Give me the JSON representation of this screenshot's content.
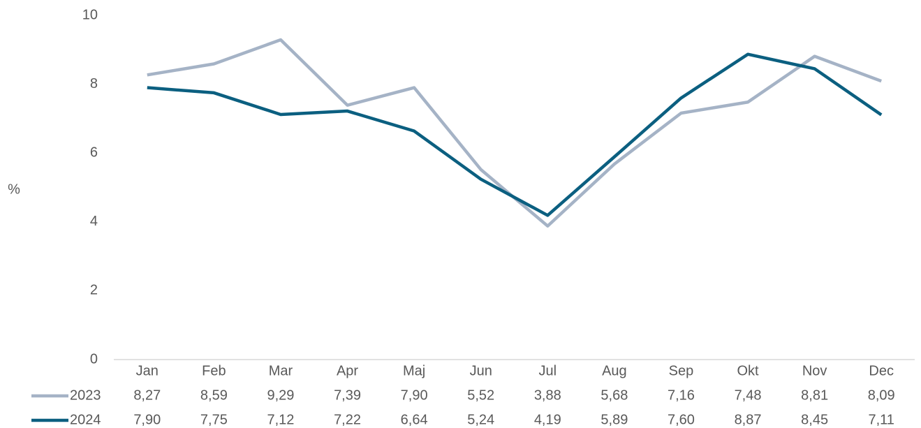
{
  "chart_data": {
    "type": "line",
    "ylabel": "%",
    "categories": [
      "Jan",
      "Feb",
      "Mar",
      "Apr",
      "Maj",
      "Jun",
      "Jul",
      "Aug",
      "Sep",
      "Okt",
      "Nov",
      "Dec"
    ],
    "series": [
      {
        "name": "2023",
        "color": "#a5b3c6",
        "values": [
          8.27,
          8.59,
          9.29,
          7.39,
          7.9,
          5.52,
          3.88,
          5.68,
          7.16,
          7.48,
          8.81,
          8.09
        ],
        "value_labels": [
          "8,27",
          "8,59",
          "9,29",
          "7,39",
          "7,90",
          "5,52",
          "3,88",
          "5,68",
          "7,16",
          "7,48",
          "8,81",
          "8,09"
        ]
      },
      {
        "name": "2024",
        "color": "#0b5f80",
        "values": [
          7.9,
          7.75,
          7.12,
          7.22,
          6.64,
          5.24,
          4.19,
          5.89,
          7.6,
          8.87,
          8.45,
          7.11
        ],
        "value_labels": [
          "7,90",
          "7,75",
          "7,12",
          "7,22",
          "6,64",
          "5,24",
          "4,19",
          "5,89",
          "7,60",
          "8,87",
          "8,45",
          "7,11"
        ]
      }
    ],
    "ylim": [
      0,
      10
    ],
    "yticks": [
      0,
      2,
      4,
      6,
      8,
      10
    ],
    "grid": false
  }
}
